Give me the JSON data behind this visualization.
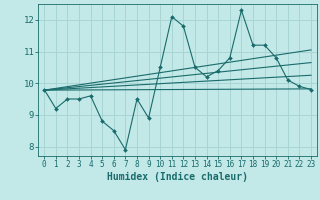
{
  "xlabel": "Humidex (Indice chaleur)",
  "bg_color": "#c2e8e8",
  "line_color": "#1a6b6b",
  "grid_color": "#a8d4d4",
  "xlim": [
    -0.5,
    23.5
  ],
  "ylim": [
    7.7,
    12.5
  ],
  "yticks": [
    8,
    9,
    10,
    11,
    12
  ],
  "xticks": [
    0,
    1,
    2,
    3,
    4,
    5,
    6,
    7,
    8,
    9,
    10,
    11,
    12,
    13,
    14,
    15,
    16,
    17,
    18,
    19,
    20,
    21,
    22,
    23
  ],
  "series1_x": [
    0,
    1,
    2,
    3,
    4,
    5,
    6,
    7,
    8,
    9,
    10,
    11,
    12,
    13,
    14,
    15,
    16,
    17,
    18,
    19,
    20,
    21,
    22,
    23
  ],
  "series1_y": [
    9.8,
    9.2,
    9.5,
    9.5,
    9.6,
    8.8,
    8.5,
    7.9,
    9.5,
    8.9,
    10.5,
    12.1,
    11.8,
    10.5,
    10.2,
    10.4,
    10.8,
    12.3,
    11.2,
    11.2,
    10.8,
    10.1,
    9.9,
    9.8
  ],
  "trend_lines": [
    {
      "x": [
        0,
        23
      ],
      "y": [
        9.78,
        9.82
      ]
    },
    {
      "x": [
        0,
        23
      ],
      "y": [
        9.78,
        10.25
      ]
    },
    {
      "x": [
        0,
        23
      ],
      "y": [
        9.78,
        10.65
      ]
    },
    {
      "x": [
        0,
        23
      ],
      "y": [
        9.78,
        11.05
      ]
    }
  ]
}
